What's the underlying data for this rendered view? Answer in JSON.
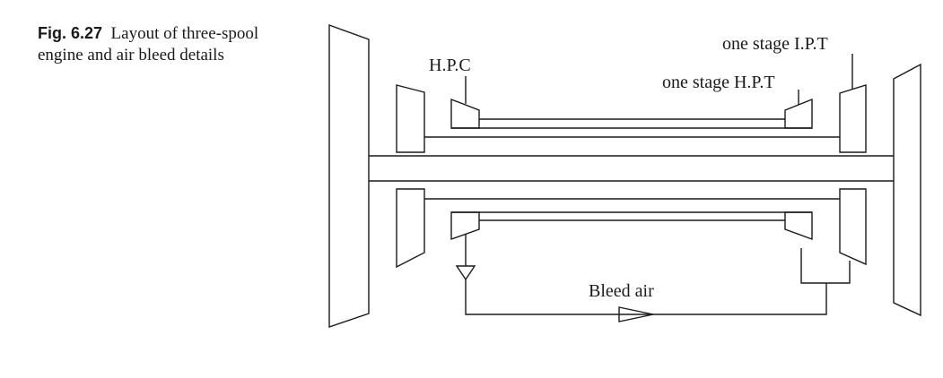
{
  "caption": {
    "figure_number": "Fig. 6.27",
    "text": "Layout of three-spool engine and air bleed details"
  },
  "labels": {
    "hpc": "H.P.C",
    "hpt": "one stage H.P.T",
    "ipt": "one stage I.P.T",
    "bleed": "Bleed air"
  }
}
